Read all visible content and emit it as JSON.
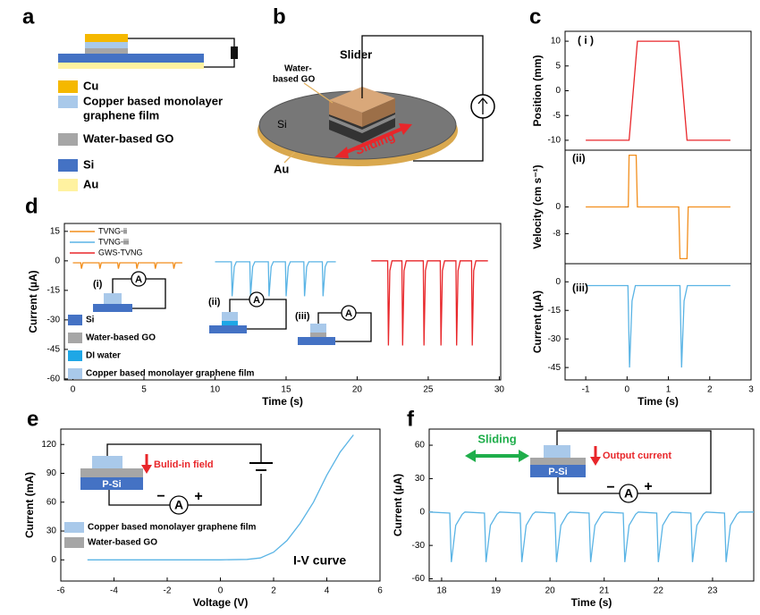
{
  "panel_labels": [
    "a",
    "b",
    "c",
    "d",
    "e",
    "f"
  ],
  "panel_a": {
    "legend": [
      {
        "lines": [
          "Cu"
        ],
        "color": "#f5b800"
      },
      {
        "lines": [
          "Copper based monolayer",
          "graphene film"
        ],
        "color": "#a9c9ea"
      },
      {
        "lines": [
          "Water-based GO"
        ],
        "color": "#a6a6a6"
      },
      {
        "lines": [
          "Si"
        ],
        "color": "#4472c4"
      },
      {
        "lines": [
          "Au"
        ],
        "color": "#fff2a0"
      }
    ]
  },
  "panel_b": {
    "slider": "Slider",
    "go": [
      "Water-",
      "based GO"
    ],
    "si": "Si",
    "au": "Au",
    "sliding": "Sliding"
  },
  "chart_data": [
    {
      "type": "line",
      "ylabel": "Position (mm)",
      "annotation": "( i )",
      "xlim": [
        -1.5,
        3
      ],
      "ylim": [
        -12,
        12
      ],
      "yticks": [
        10,
        5,
        0,
        -5,
        -10
      ],
      "series": [
        {
          "color": "#e8262a",
          "x": [
            -1,
            0.05,
            0.25,
            1.25,
            1.45,
            2.5
          ],
          "values": [
            -10,
            -10,
            10,
            10,
            -10,
            -10
          ]
        }
      ]
    },
    {
      "type": "line",
      "ylabel": "Velocity (cm s⁻¹)",
      "annotation": "(ii)",
      "xlim": [
        -1.5,
        3
      ],
      "ylim": [
        -17,
        17
      ],
      "yticks": [
        0,
        -8
      ],
      "series": [
        {
          "color": "#f28e1c",
          "x": [
            -1,
            0.03,
            0.05,
            0.22,
            0.25,
            1.25,
            1.28,
            1.45,
            1.48,
            2.5
          ],
          "values": [
            0,
            0,
            15.5,
            15.5,
            0,
            0,
            -15.5,
            -15.5,
            0,
            0
          ]
        }
      ]
    },
    {
      "type": "line",
      "ylabel": "Current (µA)",
      "xlabel": "Time (s)",
      "annotation": "(iii)",
      "xlim": [
        -1.5,
        3
      ],
      "ylim": [
        -51.5,
        9.5
      ],
      "xticks": [
        -1,
        0,
        1,
        2,
        3
      ],
      "yticks": [
        0,
        -15,
        -30,
        -45
      ],
      "series": [
        {
          "color": "#5ab4e5",
          "x": [
            -1,
            0.02,
            0.06,
            0.12,
            0.2,
            1.28,
            1.32,
            1.38,
            1.46,
            2.5
          ],
          "values": [
            -2,
            -2,
            -45,
            -10,
            -2,
            -2,
            -45,
            -10,
            -2,
            -2
          ]
        }
      ]
    },
    {
      "type": "line",
      "ylabel": "Current (µA)",
      "xlabel": "Time (s)",
      "xlim": [
        -0.6,
        30.1
      ],
      "ylim": [
        -60.5,
        19
      ],
      "xticks": [
        0,
        5,
        10,
        15,
        20,
        25,
        30
      ],
      "yticks": [
        15,
        0,
        -15,
        -30,
        -45,
        -60
      ],
      "series": [
        {
          "name": "TVNG-ii",
          "color": "#f28e1c",
          "x": [
            0,
            0.55,
            0.6,
            0.7,
            1.85,
            1.9,
            2.0,
            3.15,
            3.2,
            3.3,
            4.45,
            4.5,
            4.6,
            5.75,
            5.8,
            5.9,
            7.05,
            7.1,
            7.2,
            7.7
          ],
          "values": [
            -1,
            -1,
            -4,
            -1,
            -1,
            -4,
            -1,
            -1,
            -4,
            -1,
            -1,
            -4,
            -1,
            -1,
            -4,
            -1,
            -1,
            -4,
            -1,
            -1
          ]
        },
        {
          "name": "TVNG-iii",
          "color": "#5ab4e5",
          "x": [
            10,
            11.15,
            11.2,
            11.35,
            11.5,
            12.45,
            12.5,
            12.65,
            12.8,
            13.75,
            13.8,
            13.95,
            14.1,
            14.95,
            15.0,
            15.15,
            15.3,
            16.25,
            16.3,
            16.45,
            16.6,
            17.55,
            17.6,
            17.75,
            17.9,
            18.5
          ],
          "values": [
            -0.5,
            -0.5,
            -18,
            -3,
            -0.5,
            -0.5,
            -18,
            -3,
            -0.5,
            -0.5,
            -18,
            -3,
            -0.5,
            -0.5,
            -18,
            -3,
            -0.5,
            -0.5,
            -18,
            -3,
            -0.5,
            -0.5,
            -18,
            -3,
            -0.5,
            -0.5
          ]
        },
        {
          "name": "GWS-TVNG",
          "color": "#e8262a",
          "x": [
            21,
            22.15,
            22.2,
            22.3,
            22.45,
            23.15,
            23.2,
            23.3,
            23.45,
            24.65,
            24.7,
            24.8,
            24.95,
            25.85,
            25.9,
            26.0,
            26.15,
            26.95,
            27.0,
            27.1,
            27.25,
            28.05,
            28.1,
            28.2,
            28.35,
            29.2
          ],
          "values": [
            0,
            0,
            -43,
            -5,
            0,
            0,
            -43,
            -5,
            0,
            0,
            -43,
            -5,
            0,
            0,
            -43,
            -5,
            0,
            0,
            -43,
            -5,
            0,
            0,
            -43,
            -5,
            0,
            0
          ]
        }
      ],
      "insets": [
        "(i)",
        "(ii)",
        "(iii)"
      ],
      "ammeter": "A",
      "materials": [
        {
          "label": "Si",
          "color": "#4472c4"
        },
        {
          "label": "Water-based GO",
          "color": "#a6a6a6"
        },
        {
          "label": "DI water",
          "color": "#1ea7e6"
        },
        {
          "label": "Copper based monolayer graphene film",
          "color": "#a9c9ea"
        }
      ]
    },
    {
      "type": "line",
      "ylabel": "Current (mA)",
      "xlabel": "Voltage (V)",
      "xlim": [
        -6,
        6
      ],
      "ylim": [
        -22,
        136
      ],
      "xticks": [
        -6,
        -4,
        -2,
        0,
        2,
        4,
        6
      ],
      "yticks": [
        0,
        30,
        60,
        90,
        120
      ],
      "series": [
        {
          "color": "#5ab4e5",
          "x": [
            -5,
            -2,
            0,
            1,
            1.5,
            2,
            2.5,
            3,
            3.5,
            4,
            4.5,
            5
          ],
          "values": [
            0,
            0,
            0,
            0.5,
            2,
            8,
            20,
            38,
            60,
            88,
            112,
            130
          ]
        }
      ],
      "annotation": "I-V curve",
      "field": "Bulid-in field",
      "substrate": "P-Si",
      "minus": "−",
      "plus": "+",
      "ammeter": "A",
      "materials": [
        {
          "label": "Copper based monolayer graphene film",
          "color": "#a9c9ea"
        },
        {
          "label": "Water-based GO",
          "color": "#a6a6a6"
        }
      ]
    },
    {
      "type": "line",
      "ylabel": "Current (µA)",
      "xlabel": "Time (s)",
      "xlim": [
        17.77,
        23.76
      ],
      "ylim": [
        -62,
        74.5
      ],
      "xticks": [
        18,
        19,
        20,
        21,
        22,
        23
      ],
      "yticks": [
        60,
        30,
        0,
        -30,
        -60
      ],
      "series": [
        {
          "color": "#5ab4e5",
          "x": [
            17.77,
            18.15,
            18.18,
            18.26,
            18.38,
            18.43,
            18.79,
            18.82,
            18.9,
            19.02,
            19.07,
            19.45,
            19.48,
            19.56,
            19.68,
            19.73,
            20.09,
            20.12,
            20.2,
            20.32,
            20.37,
            20.72,
            20.75,
            20.83,
            20.95,
            21.0,
            21.35,
            21.38,
            21.46,
            21.58,
            21.63,
            21.97,
            22.0,
            22.08,
            22.2,
            22.25,
            22.6,
            22.63,
            22.71,
            22.83,
            22.88,
            23.22,
            23.25,
            23.33,
            23.45,
            23.5,
            23.76
          ],
          "values": [
            0,
            -1,
            -45,
            -12,
            -2,
            0,
            -1,
            -45,
            -12,
            -2,
            0,
            -1,
            -45,
            -12,
            -2,
            0,
            -1,
            -45,
            -12,
            -2,
            0,
            -1,
            -45,
            -12,
            -2,
            0,
            -1,
            -45,
            -12,
            -2,
            0,
            -1,
            -45,
            -12,
            -2,
            0,
            -1,
            -45,
            -12,
            -2,
            0,
            -1,
            -45,
            -12,
            -2,
            0,
            0
          ]
        }
      ],
      "sliding": "Sliding",
      "output": "Output current",
      "substrate": "P-Si",
      "minus": "−",
      "plus": "+",
      "ammeter": "A"
    }
  ]
}
